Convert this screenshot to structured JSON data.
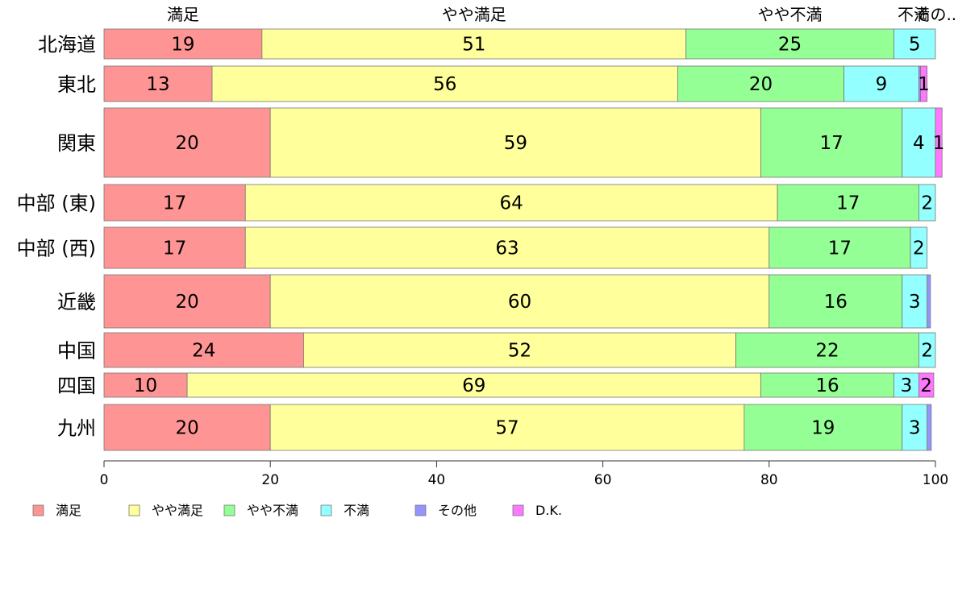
{
  "chart_data": {
    "type": "bar",
    "orientation": "horizontal",
    "stacked": true,
    "categories": [
      "北海道",
      "東北",
      "関東",
      "中部 (東)",
      "中部 (西)",
      "近畿",
      "中国",
      "四国",
      "九州"
    ],
    "series": [
      {
        "name": "満足",
        "color": "#FF9494",
        "values": [
          19,
          13,
          20,
          17,
          17,
          20,
          24,
          10,
          20
        ],
        "labels": [
          "19",
          "13",
          "20",
          "17",
          "17",
          "20",
          "24",
          "10",
          "20"
        ]
      },
      {
        "name": "やや満足",
        "color": "#FFFF9C",
        "values": [
          51,
          56,
          59,
          64,
          63,
          60,
          52,
          69,
          57
        ],
        "labels": [
          "51",
          "56",
          "59",
          "64",
          "63",
          "60",
          "52",
          "69",
          "57"
        ]
      },
      {
        "name": "やや不満",
        "color": "#94FF94",
        "values": [
          25,
          20,
          17,
          17,
          17,
          16,
          22,
          16,
          19
        ],
        "labels": [
          "25",
          "20",
          "17",
          "17",
          "17",
          "16",
          "22",
          "16",
          "19"
        ]
      },
      {
        "name": "不満",
        "color": "#94FFFF",
        "values": [
          5,
          9,
          4,
          2,
          2,
          3,
          2,
          3,
          3
        ],
        "labels": [
          "5",
          "9",
          "4",
          "2",
          "2",
          "3",
          "2",
          "3",
          "3"
        ]
      },
      {
        "name": "その他",
        "color": "#9494FF",
        "values": [
          0,
          0.2,
          0,
          0,
          0,
          0.4,
          0,
          0,
          0.5
        ],
        "labels": [
          "",
          "",
          "",
          "",
          "",
          "",
          "",
          "",
          ""
        ]
      },
      {
        "name": "D.K.",
        "color": "#FF77FF",
        "values": [
          0,
          0.8,
          0.8,
          0,
          0,
          0,
          0,
          1.8,
          0
        ],
        "labels": [
          "",
          "1",
          "1",
          "",
          "",
          "",
          "",
          "2",
          ""
        ]
      }
    ],
    "column_labels": [
      "満足",
      "やや満足",
      "やや不満",
      "不満",
      "その..."
    ],
    "xlim": [
      0,
      100
    ],
    "xticks": [
      "0",
      "20",
      "40",
      "60",
      "80",
      "100"
    ],
    "legend_position": "bottom-left"
  }
}
